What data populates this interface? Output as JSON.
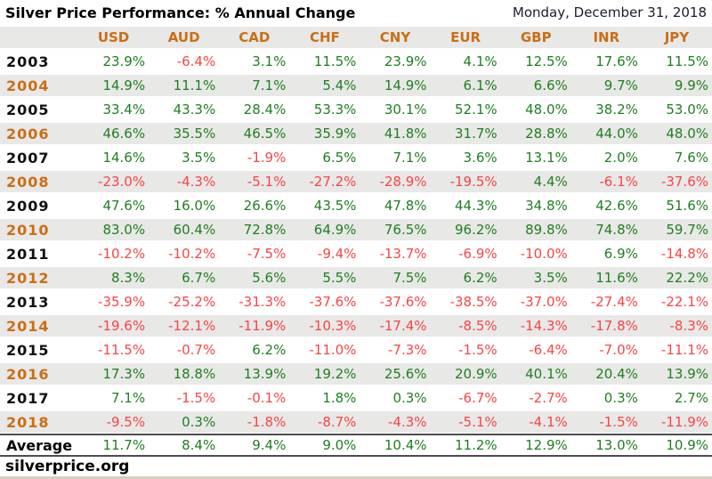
{
  "header": {
    "title": "Silver Price Performance: % Annual Change",
    "date": "Monday, December 31, 2018"
  },
  "footer": {
    "brand": "silverprice.org"
  },
  "chart_data": {
    "type": "table",
    "title": "Silver Price Performance: % Annual Change",
    "date": "Monday, December 31, 2018",
    "unit": "%",
    "columns": [
      "USD",
      "AUD",
      "CAD",
      "CHF",
      "CNY",
      "EUR",
      "GBP",
      "INR",
      "JPY"
    ],
    "years": [
      "2003",
      "2004",
      "2005",
      "2006",
      "2007",
      "2008",
      "2009",
      "2010",
      "2011",
      "2012",
      "2013",
      "2014",
      "2015",
      "2016",
      "2017",
      "2018"
    ],
    "values_pct": [
      [
        23.9,
        -6.4,
        3.1,
        11.5,
        23.9,
        4.1,
        12.5,
        17.6,
        11.5
      ],
      [
        14.9,
        11.1,
        7.1,
        5.4,
        14.9,
        6.1,
        6.6,
        9.7,
        9.9
      ],
      [
        33.4,
        43.3,
        28.4,
        53.3,
        30.1,
        52.1,
        48.0,
        38.2,
        53.0
      ],
      [
        46.6,
        35.5,
        46.5,
        35.9,
        41.8,
        31.7,
        28.8,
        44.0,
        48.0
      ],
      [
        14.6,
        3.5,
        -1.9,
        6.5,
        7.1,
        3.6,
        13.1,
        2.0,
        7.6
      ],
      [
        -23.0,
        -4.3,
        -5.1,
        -27.2,
        -28.9,
        -19.5,
        4.4,
        -6.1,
        -37.6
      ],
      [
        47.6,
        16.0,
        26.6,
        43.5,
        47.8,
        44.3,
        34.8,
        42.6,
        51.6
      ],
      [
        83.0,
        60.4,
        72.8,
        64.9,
        76.5,
        96.2,
        89.8,
        74.8,
        59.7
      ],
      [
        -10.2,
        -10.2,
        -7.5,
        -9.4,
        -13.7,
        -6.9,
        -10.0,
        6.9,
        -14.8
      ],
      [
        8.3,
        6.7,
        5.6,
        5.5,
        7.5,
        6.2,
        3.5,
        11.6,
        22.2
      ],
      [
        -35.9,
        -25.2,
        -31.3,
        -37.6,
        -37.6,
        -38.5,
        -37.0,
        -27.4,
        -22.1
      ],
      [
        -19.6,
        -12.1,
        -11.9,
        -10.3,
        -17.4,
        -8.5,
        -14.3,
        -17.8,
        -8.3
      ],
      [
        -11.5,
        -0.7,
        6.2,
        -11.0,
        -7.3,
        -1.5,
        -6.4,
        -7.0,
        -11.1
      ],
      [
        17.3,
        18.8,
        13.9,
        19.2,
        25.6,
        20.9,
        40.1,
        20.4,
        13.9
      ],
      [
        7.1,
        -1.5,
        -0.1,
        1.8,
        0.3,
        -6.7,
        -2.7,
        0.3,
        2.7
      ],
      [
        -9.5,
        0.3,
        -1.8,
        -8.7,
        -4.3,
        -5.1,
        -4.1,
        -1.5,
        -11.9
      ]
    ],
    "average_label": "Average",
    "average_pct": [
      11.7,
      8.4,
      9.4,
      9.0,
      10.4,
      11.2,
      12.9,
      13.0,
      10.9
    ],
    "legend_position": "none",
    "grid": false
  },
  "colors": {
    "orange": "#cc6e14",
    "positive_green": "#1f7f1f",
    "negative_red": "#f94444",
    "stripe_gray": "#e8e8e7",
    "rule_dark": "#4d4d4d",
    "year_black": "#111111",
    "bottom_strip": "#d6cfc0"
  }
}
